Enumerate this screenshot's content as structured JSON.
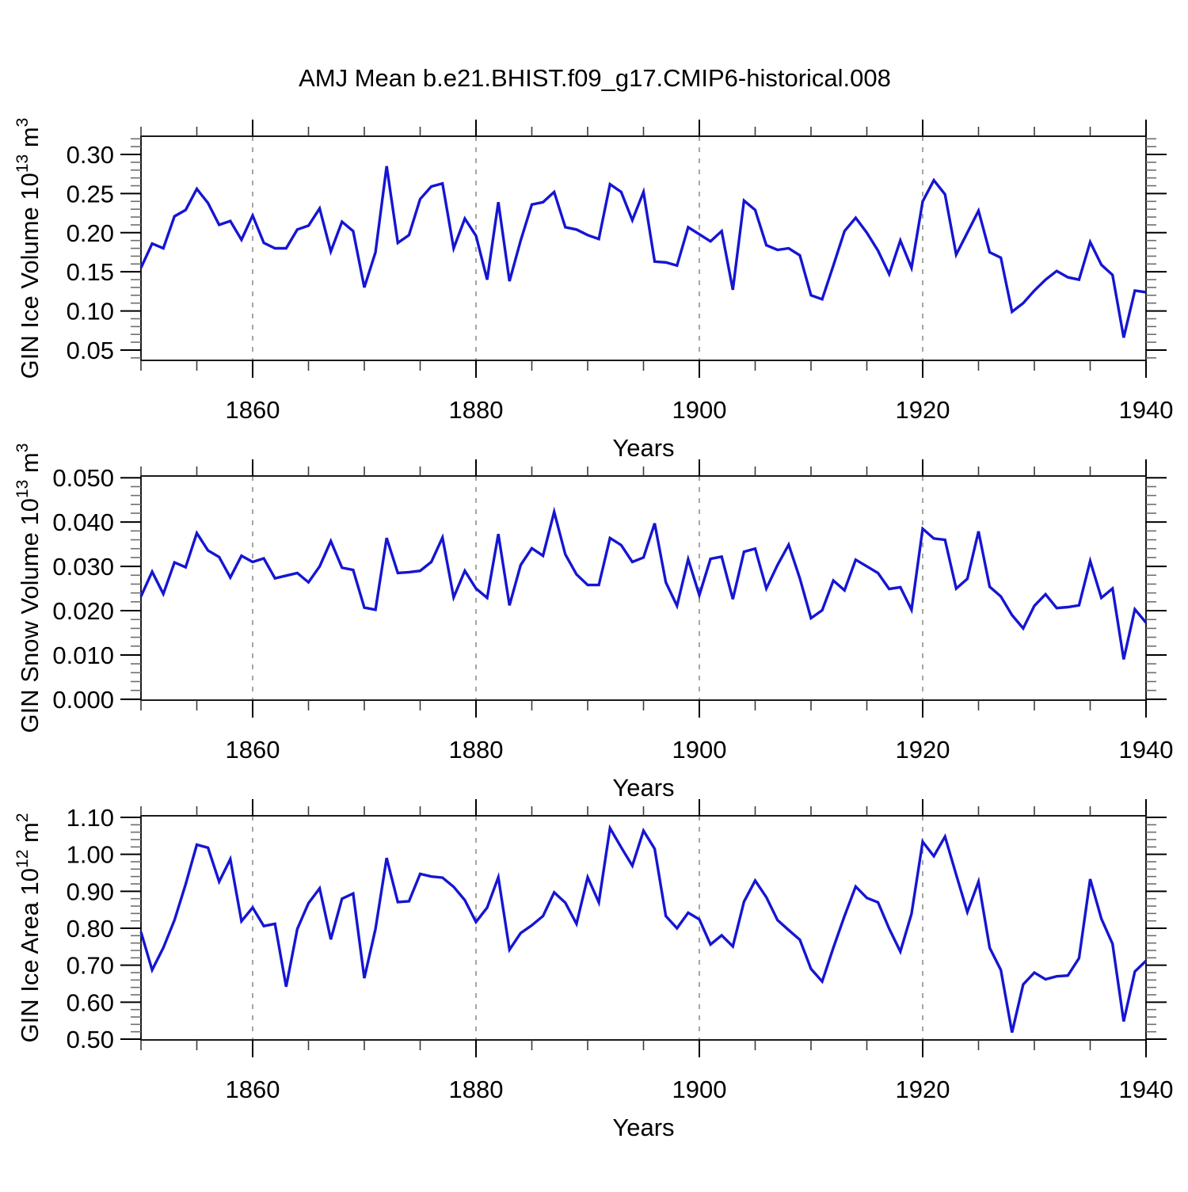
{
  "title": "AMJ Mean b.e21.BHIST.f09_g17.CMIP6-historical.008",
  "colors": {
    "line": "#1515d3",
    "frame": "#1a1a1a",
    "grid": "#8f8f8f",
    "major_tick": "#000000",
    "minor_tick": "#6e6e6e",
    "text": "#000000",
    "background": "#ffffff"
  },
  "x": {
    "start": 1850,
    "end": 1940,
    "axis_title": "Years",
    "tick_labels": [
      "1860",
      "1880",
      "1900",
      "1920",
      "1940"
    ],
    "tick_values": [
      1860,
      1880,
      1900,
      1920,
      1940
    ],
    "minor_tick_step": 5,
    "gridline_years": [
      1860,
      1880,
      1900,
      1920
    ]
  },
  "chart_data": [
    {
      "type": "line",
      "ylabel_text": "GIN Ice Volume 10^13 m^3",
      "ylabel_parts": [
        {
          "t": "GIN Ice Volume 10"
        },
        {
          "t": "13",
          "sup": true
        },
        {
          "t": " m"
        },
        {
          "t": "3",
          "sup": true
        }
      ],
      "ylim": [
        0.0368,
        0.3233
      ],
      "ytick_values": [
        0.05,
        0.1,
        0.15,
        0.2,
        0.25,
        0.3
      ],
      "ytick_labels": [
        "0.05",
        "0.10",
        "0.15",
        "0.20",
        "0.25",
        "0.30"
      ],
      "y_minor_step": 0.01,
      "x_start": 1850,
      "values": [
        0.155,
        0.186,
        0.18,
        0.221,
        0.229,
        0.256,
        0.238,
        0.21,
        0.215,
        0.191,
        0.222,
        0.187,
        0.18,
        0.18,
        0.204,
        0.209,
        0.231,
        0.176,
        0.214,
        0.202,
        0.13,
        0.175,
        0.285,
        0.187,
        0.197,
        0.243,
        0.259,
        0.263,
        0.18,
        0.218,
        0.196,
        0.14,
        0.239,
        0.138,
        0.19,
        0.236,
        0.239,
        0.252,
        0.207,
        0.204,
        0.197,
        0.192,
        0.262,
        0.252,
        0.216,
        0.252,
        0.163,
        0.162,
        0.158,
        0.207,
        0.198,
        0.189,
        0.202,
        0.127,
        0.241,
        0.229,
        0.184,
        0.178,
        0.18,
        0.171,
        0.12,
        0.115,
        0.158,
        0.202,
        0.219,
        0.2,
        0.177,
        0.147,
        0.19,
        0.155,
        0.24,
        0.267,
        0.249,
        0.172,
        0.2,
        0.228,
        0.175,
        0.168,
        0.099,
        0.11,
        0.126,
        0.14,
        0.151,
        0.143,
        0.14,
        0.188,
        0.159,
        0.146,
        0.066,
        0.126,
        0.124
      ]
    },
    {
      "type": "line",
      "ylabel_text": "GIN Snow Volume 10^13 m^3",
      "ylabel_parts": [
        {
          "t": "GIN Snow Volume 10"
        },
        {
          "t": "13",
          "sup": true
        },
        {
          "t": " m"
        },
        {
          "t": "3",
          "sup": true
        }
      ],
      "ylim": [
        -0.0002,
        0.0504
      ],
      "ytick_values": [
        0.0,
        0.01,
        0.02,
        0.03,
        0.04,
        0.05
      ],
      "ytick_labels": [
        "0.000",
        "0.010",
        "0.020",
        "0.030",
        "0.040",
        "0.050"
      ],
      "y_minor_step": 0.002,
      "x_start": 1850,
      "values": [
        0.0232,
        0.0288,
        0.0238,
        0.0309,
        0.0298,
        0.0375,
        0.0336,
        0.0321,
        0.0275,
        0.0324,
        0.031,
        0.0318,
        0.0273,
        0.0279,
        0.0285,
        0.0264,
        0.03,
        0.0357,
        0.0297,
        0.0292,
        0.0207,
        0.0202,
        0.0364,
        0.0285,
        0.0287,
        0.029,
        0.031,
        0.0365,
        0.023,
        0.029,
        0.025,
        0.0229,
        0.0373,
        0.0212,
        0.0303,
        0.0341,
        0.0324,
        0.0423,
        0.0327,
        0.0282,
        0.0258,
        0.0258,
        0.0364,
        0.0348,
        0.031,
        0.032,
        0.0397,
        0.0264,
        0.0211,
        0.0316,
        0.0235,
        0.0317,
        0.0322,
        0.0226,
        0.0333,
        0.034,
        0.025,
        0.0303,
        0.0349,
        0.0273,
        0.0183,
        0.0201,
        0.0268,
        0.0246,
        0.0315,
        0.03,
        0.0285,
        0.0249,
        0.0253,
        0.0202,
        0.0385,
        0.0363,
        0.036,
        0.025,
        0.0272,
        0.0379,
        0.0254,
        0.0232,
        0.019,
        0.016,
        0.0211,
        0.0237,
        0.0206,
        0.0208,
        0.0212,
        0.0312,
        0.0229,
        0.025,
        0.009,
        0.0203,
        0.0173
      ]
    },
    {
      "type": "line",
      "ylabel_text": "GIN Ice Area 10^12 m^2",
      "ylabel_parts": [
        {
          "t": "GIN Ice Area 10"
        },
        {
          "t": "12",
          "sup": true
        },
        {
          "t": " m"
        },
        {
          "t": "2",
          "sup": true
        }
      ],
      "ylim": [
        0.4979,
        1.1043
      ],
      "ytick_values": [
        0.5,
        0.6,
        0.7,
        0.8,
        0.9,
        1.0,
        1.1
      ],
      "ytick_labels": [
        "0.50",
        "0.60",
        "0.70",
        "0.80",
        "0.90",
        "1.00",
        "1.10"
      ],
      "y_minor_step": 0.02,
      "x_start": 1850,
      "values": [
        0.79,
        0.687,
        0.747,
        0.822,
        0.919,
        1.026,
        1.018,
        0.926,
        0.987,
        0.819,
        0.856,
        0.806,
        0.812,
        0.642,
        0.798,
        0.868,
        0.908,
        0.77,
        0.88,
        0.894,
        0.665,
        0.798,
        0.99,
        0.871,
        0.873,
        0.947,
        0.94,
        0.937,
        0.912,
        0.876,
        0.817,
        0.856,
        0.938,
        0.742,
        0.787,
        0.808,
        0.833,
        0.897,
        0.869,
        0.812,
        0.938,
        0.87,
        1.071,
        1.019,
        0.969,
        1.064,
        1.015,
        0.833,
        0.8,
        0.842,
        0.824,
        0.756,
        0.781,
        0.751,
        0.872,
        0.929,
        0.884,
        0.822,
        0.795,
        0.769,
        0.69,
        0.656,
        0.747,
        0.833,
        0.913,
        0.882,
        0.87,
        0.799,
        0.737,
        0.839,
        1.034,
        0.995,
        1.048,
        0.945,
        0.844,
        0.926,
        0.747,
        0.687,
        0.518,
        0.648,
        0.68,
        0.662,
        0.67,
        0.672,
        0.719,
        0.933,
        0.826,
        0.758,
        0.548,
        0.683,
        0.712
      ]
    }
  ]
}
